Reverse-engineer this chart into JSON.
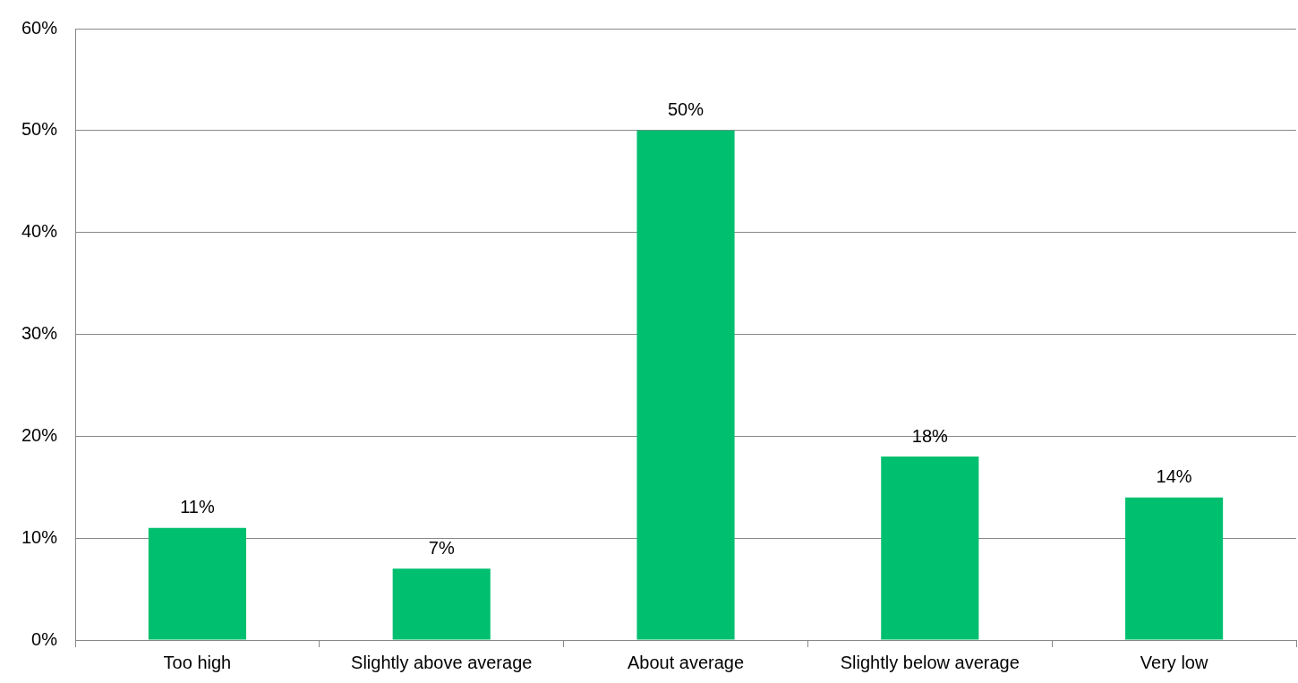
{
  "chart_data": {
    "type": "bar",
    "categories": [
      "Too high",
      "Slightly above average",
      "About average",
      "Slightly below average",
      "Very low"
    ],
    "values": [
      11,
      7,
      50,
      18,
      14
    ],
    "value_labels": [
      "11%",
      "7%",
      "50%",
      "18%",
      "14%"
    ],
    "color": "#00bf6f",
    "ylim": [
      0,
      60
    ],
    "yticks": [
      {
        "value": 0,
        "label": "0%"
      },
      {
        "value": 10,
        "label": "10%"
      },
      {
        "value": 20,
        "label": "20%"
      },
      {
        "value": 30,
        "label": "30%"
      },
      {
        "value": 40,
        "label": "40%"
      },
      {
        "value": 50,
        "label": "50%"
      },
      {
        "value": 60,
        "label": "60%"
      }
    ],
    "grid": "y",
    "legend": false
  }
}
